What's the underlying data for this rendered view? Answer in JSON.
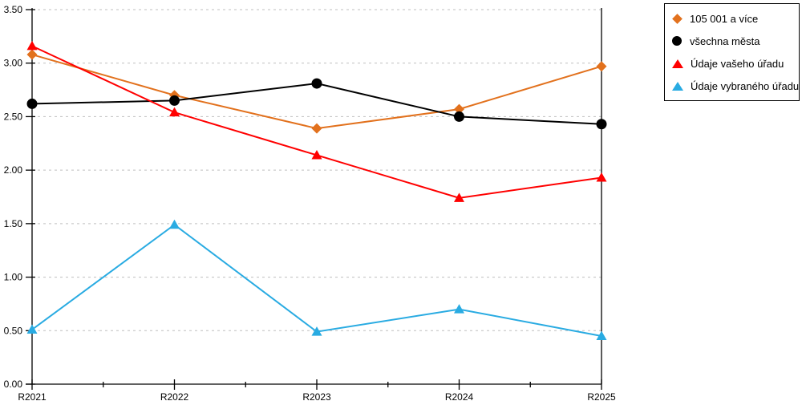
{
  "chart_data": {
    "type": "line",
    "title": "",
    "xlabel": "",
    "ylabel": "",
    "categories": [
      "R2021",
      "R2022",
      "R2023",
      "R2024",
      "R2025"
    ],
    "series": [
      {
        "name": "105 001 a více",
        "color": "#E2711D",
        "marker": "diamond",
        "values": [
          3.08,
          2.7,
          2.39,
          2.57,
          2.97
        ]
      },
      {
        "name": "všechna města",
        "color": "#000000",
        "marker": "circle",
        "values": [
          2.62,
          2.65,
          2.81,
          2.5,
          2.43
        ]
      },
      {
        "name": "Údaje vašeho úřadu",
        "color": "#FF0000",
        "marker": "triangle",
        "values": [
          3.16,
          2.54,
          2.14,
          1.74,
          1.93
        ]
      },
      {
        "name": "Údaje vybraného úřadu",
        "color": "#29ABE2",
        "marker": "triangle",
        "values": [
          0.51,
          1.49,
          0.49,
          0.7,
          0.45
        ]
      }
    ],
    "ylim": [
      0,
      3.5
    ],
    "ytick_step": 0.5,
    "ytick_labels": [
      "0.00",
      "0.50",
      "1.00",
      "1.50",
      "2.00",
      "2.50",
      "3.00",
      "3.50"
    ],
    "grid": "horizontal-dashed",
    "grid_color": "#BFBFBF",
    "axis_color": "#000000",
    "legend_position": "top-right"
  }
}
